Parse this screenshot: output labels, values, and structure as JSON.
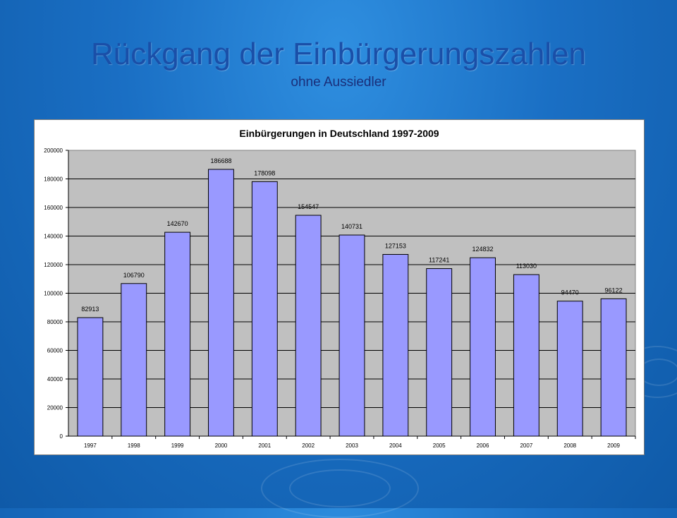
{
  "slide": {
    "title": "Rückgang der Einbürgerungszahlen",
    "subtitle": "ohne Aussiedler"
  },
  "colors": {
    "bar_fill": "#9999ff",
    "plot_bg": "#c0c0c0",
    "title": "#1a4fa8"
  },
  "chart_data": {
    "type": "bar",
    "title": "Einbürgerungen in Deutschland 1997-2009",
    "xlabel": "",
    "ylabel": "",
    "categories": [
      "1997",
      "1998",
      "1999",
      "2000",
      "2001",
      "2002",
      "2003",
      "2004",
      "2005",
      "2006",
      "2007",
      "2008",
      "2009"
    ],
    "values": [
      82913,
      106790,
      142670,
      186688,
      178098,
      154547,
      140731,
      127153,
      117241,
      124832,
      113030,
      94470,
      96122
    ],
    "data_labels": [
      "82913",
      "106790",
      "142670",
      "186688",
      "178098",
      "154547",
      "140731",
      "127153",
      "117241",
      "124832",
      "113030",
      "94470",
      "96122"
    ],
    "ylim": [
      0,
      200000
    ],
    "yticks": [
      "0",
      "20000",
      "40000",
      "60000",
      "80000",
      "100000",
      "120000",
      "140000",
      "160000",
      "180000",
      "200000"
    ],
    "grid": true,
    "legend": "none"
  }
}
